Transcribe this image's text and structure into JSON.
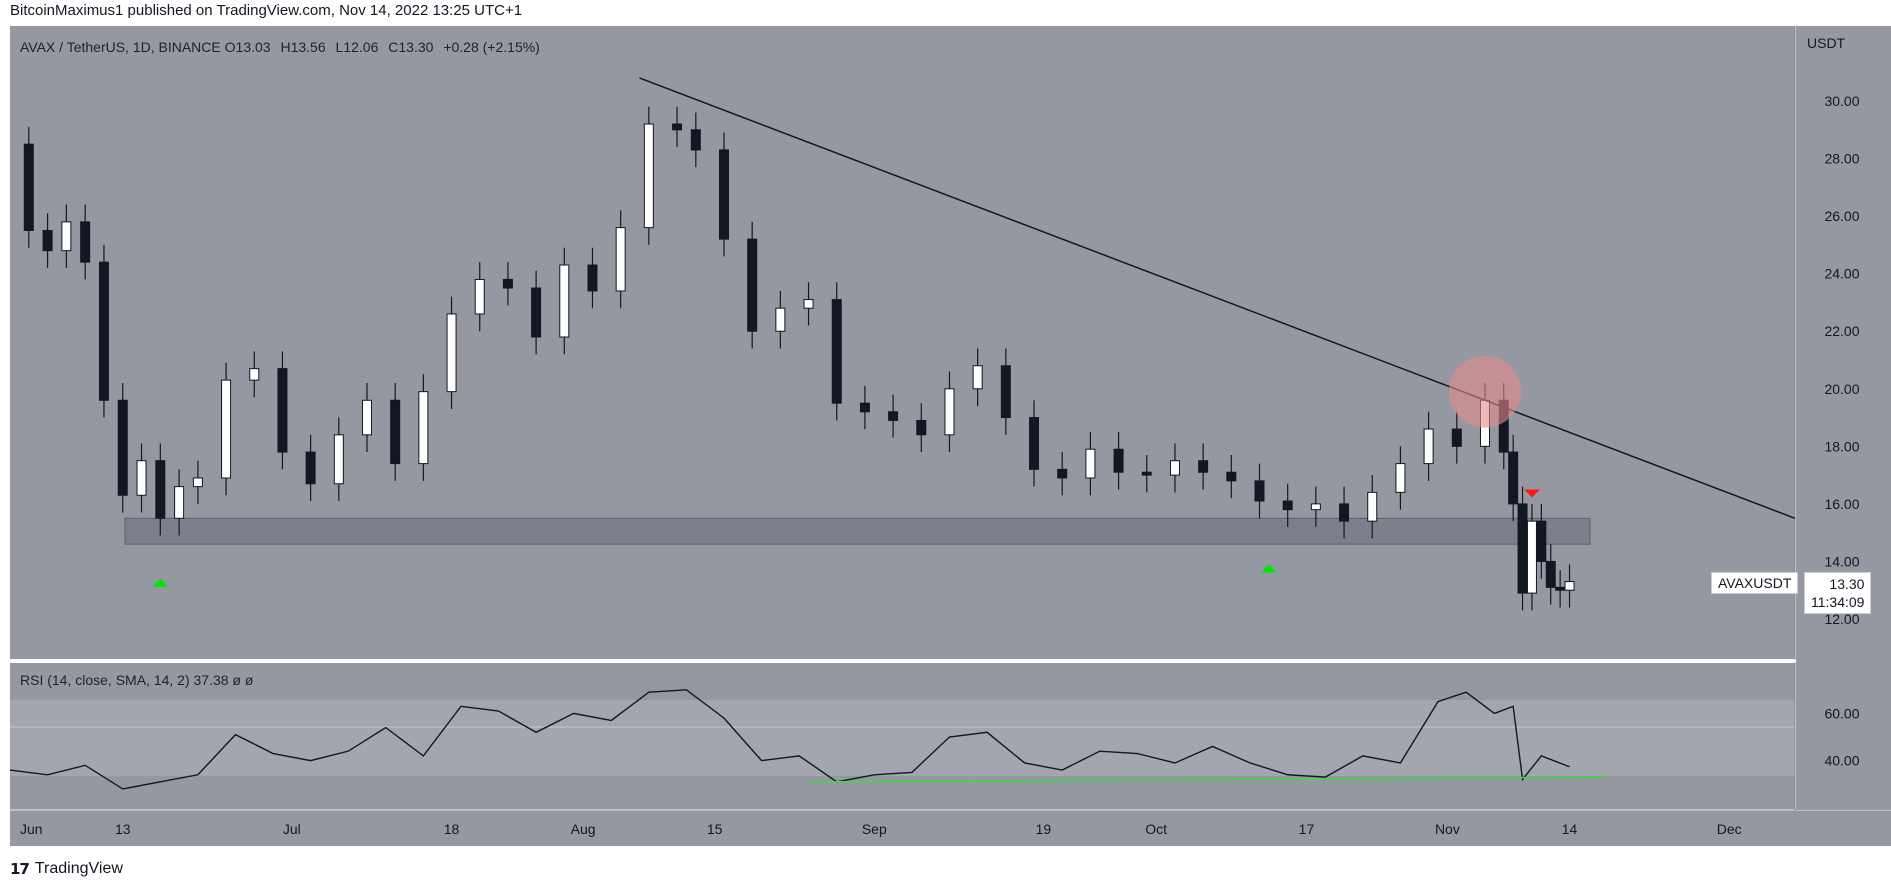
{
  "publish_caption": "BitcoinMaximus1 published on TradingView.com, Nov 14, 2022 13:25 UTC+1",
  "legend": {
    "symbol": "AVAX / TetherUS, 1D, BINANCE",
    "o_label": "O",
    "o_value": "13.03",
    "h_label": "H",
    "h_value": "13.56",
    "l_label": "L",
    "l_value": "12.06",
    "c_label": "C",
    "c_value": "13.30",
    "change": "+0.28 (+2.15%)"
  },
  "rsi_legend": "RSI (14, close, SMA, 14, 2)  37.38  ø  ø",
  "footer_brand": "TradingView",
  "footer_logo": "17",
  "price_axis": {
    "currency": "USDT",
    "ticks": [
      "30.00",
      "28.00",
      "26.00",
      "24.00",
      "22.00",
      "20.00",
      "18.00",
      "16.00",
      "14.00",
      "12.00"
    ]
  },
  "rsi_axis": {
    "ticks": [
      "60.00",
      "40.00"
    ]
  },
  "time_axis": [
    "Jun",
    "13",
    "Jul",
    "18",
    "Aug",
    "15",
    "Sep",
    "19",
    "Oct",
    "17",
    "Nov",
    "14",
    "Dec"
  ],
  "symbol_tag": "AVAXUSDT",
  "last_price": "13.30",
  "countdown": "11:34:09",
  "colors": {
    "main_bg": "#9598a1",
    "rsi_band": "#a3a6ae",
    "support_zone": "#787b86",
    "up_candle": "#ffffff",
    "down_candle": "#131722",
    "up_arrow": "#00e600",
    "down_arrow": "#ff1a1a",
    "rejection_circle": "#e58a8a",
    "rsi_divergence": "#3ddc3d"
  },
  "chart_data": {
    "type": "candlestick",
    "title": "AVAX / TetherUS, 1D, BINANCE",
    "ylabel": "USDT",
    "ylim": [
      11,
      32
    ],
    "x_range": [
      "2022-06-01",
      "2022-12-08"
    ],
    "closes": [
      {
        "date": "2022-06-01",
        "c": 28.5
      },
      {
        "date": "2022-06-03",
        "c": 25.5
      },
      {
        "date": "2022-06-05",
        "c": 24.8
      },
      {
        "date": "2022-06-07",
        "c": 25.8
      },
      {
        "date": "2022-06-09",
        "c": 24.4
      },
      {
        "date": "2022-06-11",
        "c": 19.6
      },
      {
        "date": "2022-06-13",
        "c": 16.3
      },
      {
        "date": "2022-06-15",
        "c": 17.5
      },
      {
        "date": "2022-06-17",
        "c": 15.5
      },
      {
        "date": "2022-06-19",
        "c": 16.6
      },
      {
        "date": "2022-06-21",
        "c": 16.9
      },
      {
        "date": "2022-06-24",
        "c": 20.3
      },
      {
        "date": "2022-06-27",
        "c": 20.7
      },
      {
        "date": "2022-06-30",
        "c": 17.8
      },
      {
        "date": "2022-07-03",
        "c": 16.7
      },
      {
        "date": "2022-07-06",
        "c": 18.4
      },
      {
        "date": "2022-07-09",
        "c": 19.6
      },
      {
        "date": "2022-07-12",
        "c": 17.4
      },
      {
        "date": "2022-07-15",
        "c": 19.9
      },
      {
        "date": "2022-07-18",
        "c": 22.6
      },
      {
        "date": "2022-07-21",
        "c": 23.8
      },
      {
        "date": "2022-07-24",
        "c": 23.5
      },
      {
        "date": "2022-07-27",
        "c": 21.8
      },
      {
        "date": "2022-07-30",
        "c": 24.3
      },
      {
        "date": "2022-08-02",
        "c": 23.4
      },
      {
        "date": "2022-08-05",
        "c": 25.6
      },
      {
        "date": "2022-08-08",
        "c": 29.2
      },
      {
        "date": "2022-08-11",
        "c": 29.0
      },
      {
        "date": "2022-08-13",
        "c": 28.3
      },
      {
        "date": "2022-08-16",
        "c": 25.2
      },
      {
        "date": "2022-08-19",
        "c": 22.0
      },
      {
        "date": "2022-08-22",
        "c": 22.8
      },
      {
        "date": "2022-08-25",
        "c": 23.1
      },
      {
        "date": "2022-08-28",
        "c": 19.5
      },
      {
        "date": "2022-08-31",
        "c": 19.2
      },
      {
        "date": "2022-09-03",
        "c": 18.9
      },
      {
        "date": "2022-09-06",
        "c": 18.4
      },
      {
        "date": "2022-09-09",
        "c": 20.0
      },
      {
        "date": "2022-09-12",
        "c": 20.8
      },
      {
        "date": "2022-09-15",
        "c": 19.0
      },
      {
        "date": "2022-09-18",
        "c": 17.2
      },
      {
        "date": "2022-09-21",
        "c": 16.9
      },
      {
        "date": "2022-09-24",
        "c": 17.9
      },
      {
        "date": "2022-09-27",
        "c": 17.1
      },
      {
        "date": "2022-09-30",
        "c": 17.0
      },
      {
        "date": "2022-10-03",
        "c": 17.5
      },
      {
        "date": "2022-10-06",
        "c": 17.1
      },
      {
        "date": "2022-10-09",
        "c": 16.8
      },
      {
        "date": "2022-10-12",
        "c": 16.1
      },
      {
        "date": "2022-10-15",
        "c": 15.8
      },
      {
        "date": "2022-10-18",
        "c": 16.0
      },
      {
        "date": "2022-10-21",
        "c": 15.4
      },
      {
        "date": "2022-10-24",
        "c": 16.4
      },
      {
        "date": "2022-10-27",
        "c": 17.4
      },
      {
        "date": "2022-10-30",
        "c": 18.6
      },
      {
        "date": "2022-11-02",
        "c": 18.0
      },
      {
        "date": "2022-11-05",
        "c": 19.6
      },
      {
        "date": "2022-11-07",
        "c": 17.8
      },
      {
        "date": "2022-11-08",
        "c": 16.0
      },
      {
        "date": "2022-11-09",
        "c": 12.9
      },
      {
        "date": "2022-11-10",
        "c": 15.4
      },
      {
        "date": "2022-11-11",
        "c": 14.0
      },
      {
        "date": "2022-11-12",
        "c": 13.1
      },
      {
        "date": "2022-11-13",
        "c": 13.0
      },
      {
        "date": "2022-11-14",
        "c": 13.3
      }
    ],
    "support_zone": [
      14.6,
      15.5
    ],
    "descending_resistance": [
      {
        "date": "2022-08-07",
        "price": 30.8
      },
      {
        "date": "2022-12-08",
        "price": 15.5
      }
    ],
    "rsi": {
      "ylim": [
        25,
        75
      ],
      "points": [
        {
          "date": "2022-06-01",
          "v": 36
        },
        {
          "date": "2022-06-05",
          "v": 34
        },
        {
          "date": "2022-06-09",
          "v": 38
        },
        {
          "date": "2022-06-13",
          "v": 28
        },
        {
          "date": "2022-06-17",
          "v": 31
        },
        {
          "date": "2022-06-21",
          "v": 34
        },
        {
          "date": "2022-06-25",
          "v": 51
        },
        {
          "date": "2022-06-29",
          "v": 43
        },
        {
          "date": "2022-07-03",
          "v": 40
        },
        {
          "date": "2022-07-07",
          "v": 44
        },
        {
          "date": "2022-07-11",
          "v": 54
        },
        {
          "date": "2022-07-15",
          "v": 42
        },
        {
          "date": "2022-07-19",
          "v": 63
        },
        {
          "date": "2022-07-23",
          "v": 61
        },
        {
          "date": "2022-07-27",
          "v": 52
        },
        {
          "date": "2022-07-31",
          "v": 60
        },
        {
          "date": "2022-08-04",
          "v": 57
        },
        {
          "date": "2022-08-08",
          "v": 69
        },
        {
          "date": "2022-08-12",
          "v": 70
        },
        {
          "date": "2022-08-16",
          "v": 58
        },
        {
          "date": "2022-08-20",
          "v": 40
        },
        {
          "date": "2022-08-24",
          "v": 42
        },
        {
          "date": "2022-08-28",
          "v": 31
        },
        {
          "date": "2022-09-01",
          "v": 34
        },
        {
          "date": "2022-09-05",
          "v": 35
        },
        {
          "date": "2022-09-09",
          "v": 50
        },
        {
          "date": "2022-09-13",
          "v": 52
        },
        {
          "date": "2022-09-17",
          "v": 39
        },
        {
          "date": "2022-09-21",
          "v": 36
        },
        {
          "date": "2022-09-25",
          "v": 44
        },
        {
          "date": "2022-09-29",
          "v": 43
        },
        {
          "date": "2022-10-03",
          "v": 39
        },
        {
          "date": "2022-10-07",
          "v": 46
        },
        {
          "date": "2022-10-11",
          "v": 39
        },
        {
          "date": "2022-10-15",
          "v": 34
        },
        {
          "date": "2022-10-19",
          "v": 33
        },
        {
          "date": "2022-10-23",
          "v": 42
        },
        {
          "date": "2022-10-27",
          "v": 39
        },
        {
          "date": "2022-10-31",
          "v": 65
        },
        {
          "date": "2022-11-03",
          "v": 69
        },
        {
          "date": "2022-11-06",
          "v": 60
        },
        {
          "date": "2022-11-08",
          "v": 63
        },
        {
          "date": "2022-11-09",
          "v": 32
        },
        {
          "date": "2022-11-11",
          "v": 42
        },
        {
          "date": "2022-11-14",
          "v": 37.38
        }
      ],
      "divergence_line": [
        {
          "date": "2022-08-25",
          "v": 31
        },
        {
          "date": "2022-11-18",
          "v": 33
        }
      ]
    }
  }
}
